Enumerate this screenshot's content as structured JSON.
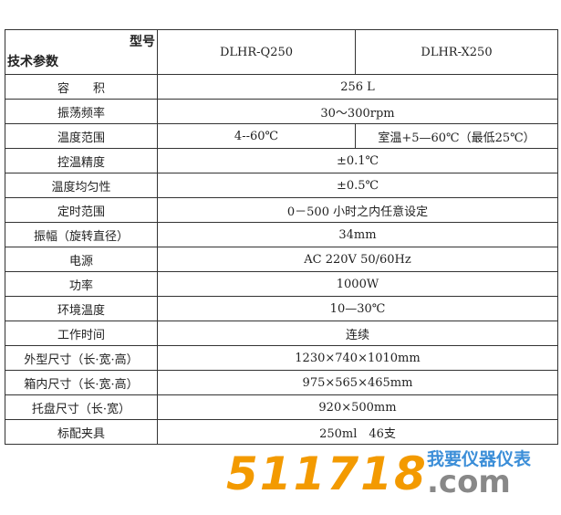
{
  "header": {
    "model_label": "型号",
    "param_label": "技术参数",
    "models": [
      "DLHR-Q250",
      "DLHR-X250"
    ]
  },
  "rows": [
    {
      "label": "容　　积",
      "value": "256 L"
    },
    {
      "label": "振荡频率",
      "value": "30～300rpm"
    },
    {
      "label": "温度范围",
      "values": [
        "4--60℃",
        "室温+5—60℃（最低25℃）"
      ]
    },
    {
      "label": "控温精度",
      "value": "±0.1℃"
    },
    {
      "label": "温度均匀性",
      "value": "±0.5℃"
    },
    {
      "label": "定时范围",
      "value": "0－500 小时之内任意设定"
    },
    {
      "label": "振幅（旋转直径）",
      "value": "34mm"
    },
    {
      "label": "电源",
      "value": "AC 220V 50/60Hz"
    },
    {
      "label": "功率",
      "value": "1000W"
    },
    {
      "label": "环境温度",
      "value": "10—30℃"
    },
    {
      "label": "工作时间",
      "value": "连续"
    },
    {
      "label": "外型尺寸（长·宽·高）",
      "value": "1230×740×1010mm"
    },
    {
      "label": "箱内尺寸（长·宽·高）",
      "value": "975×565×465mm"
    },
    {
      "label": "托盘尺寸（长·宽）",
      "value": "920×500mm"
    },
    {
      "label": "标配夹具",
      "value": "250ml　46支"
    }
  ],
  "watermark": {
    "number": "511718",
    "chinese": "我要仪器仪表",
    "domain": ".com",
    "colors": {
      "number": "#f39a00",
      "chinese": "#3b8ed8",
      "domain": "#888888"
    }
  }
}
